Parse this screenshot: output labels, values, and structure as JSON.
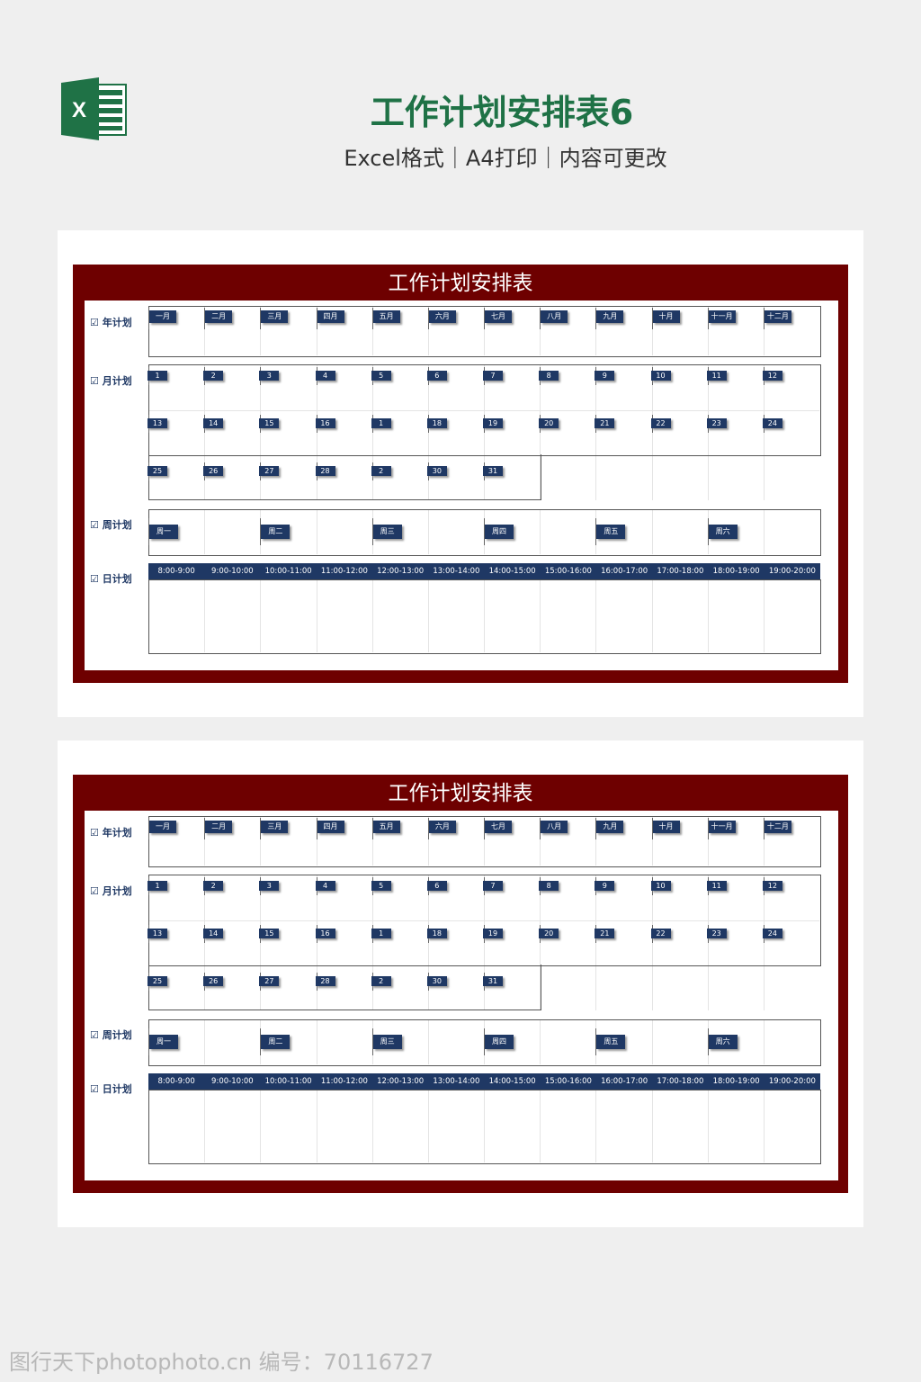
{
  "header": {
    "title": "工作计划安排表6",
    "subtitle": "Excel格式｜A4打印｜内容可更改",
    "logo_icon": "excel-icon",
    "logo_text": "X"
  },
  "sheet": {
    "title": "工作计划安排表",
    "checkbox_icon": "☑",
    "sections": {
      "year": "年计划",
      "month": "月计划",
      "week": "周计划",
      "day": "日计划"
    },
    "months": [
      "一月",
      "二月",
      "三月",
      "四月",
      "五月",
      "六月",
      "七月",
      "八月",
      "九月",
      "十月",
      "十一月",
      "十二月"
    ],
    "days": [
      "1",
      "2",
      "3",
      "4",
      "5",
      "6",
      "7",
      "8",
      "9",
      "10",
      "11",
      "12",
      "13",
      "14",
      "15",
      "16",
      "1",
      "18",
      "19",
      "20",
      "21",
      "22",
      "23",
      "24",
      "25",
      "26",
      "27",
      "28",
      "2",
      "30",
      "31"
    ],
    "weekdays": [
      "周一",
      "周二",
      "周三",
      "周四",
      "周五",
      "周六"
    ],
    "hours": [
      "8:00-9:00",
      "9:00-10:00",
      "10:00-11:00",
      "11:00-12:00",
      "12:00-13:00",
      "13:00-14:00",
      "14:00-15:00",
      "15:00-16:00",
      "16:00-17:00",
      "17:00-18:00",
      "18:00-19:00",
      "19:00-20:00"
    ]
  },
  "colors": {
    "brand_green": "#1f7246",
    "frame": "#6e0000",
    "tag": "#1f3864"
  },
  "watermark": "图行天下photophoto.cn 编号：70116727"
}
